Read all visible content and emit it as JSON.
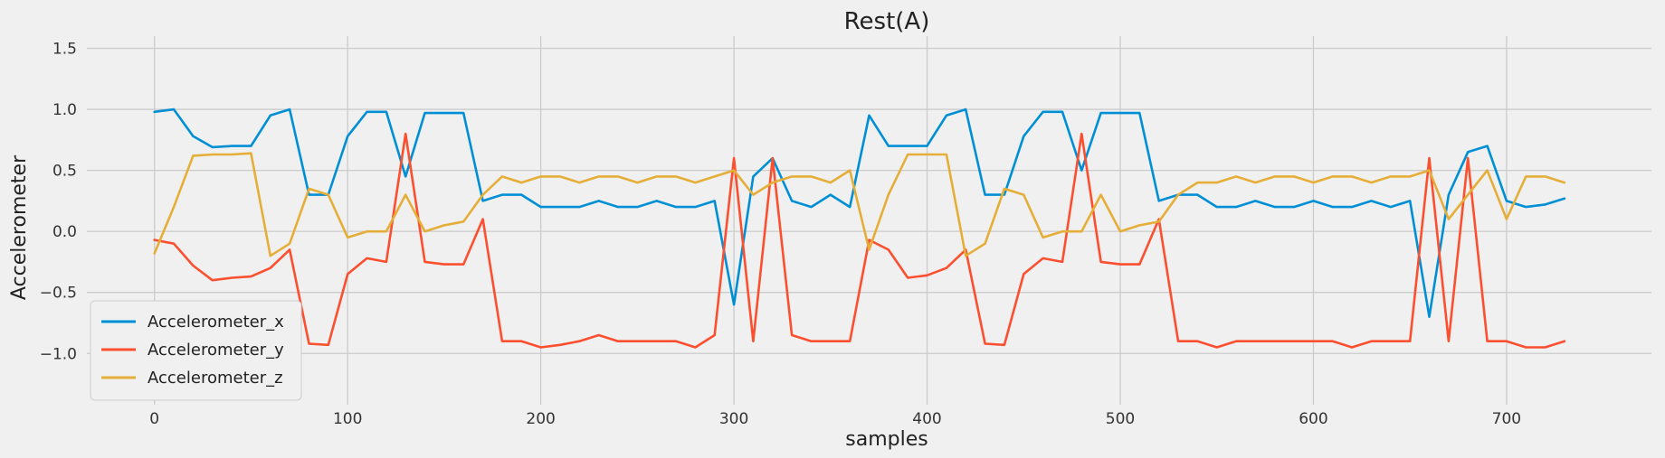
{
  "chart_data": {
    "type": "line",
    "title": "Rest(A)",
    "xlabel": "samples",
    "ylabel": "Accelerometer",
    "xlim": [
      -35,
      775
    ],
    "ylim": [
      -1.42,
      1.6
    ],
    "x_ticks": [
      0,
      100,
      200,
      300,
      400,
      500,
      600,
      700
    ],
    "y_ticks": [
      -1.0,
      -0.5,
      0.0,
      0.5,
      1.0,
      1.5
    ],
    "x_tick_labels": [
      "0",
      "100",
      "200",
      "300",
      "400",
      "500",
      "600",
      "700"
    ],
    "y_tick_labels": [
      "−1.0",
      "−0.5",
      "0.0",
      "0.5",
      "1.0",
      "1.5"
    ],
    "grid": true,
    "legend_position": "lower-left",
    "x_step": 10,
    "series": [
      {
        "name": "Accelerometer_x",
        "color": "#008fd5",
        "values": [
          0.98,
          1.0,
          0.78,
          0.69,
          0.7,
          0.7,
          0.95,
          1.0,
          0.3,
          0.3,
          0.78,
          0.98,
          0.98,
          0.45,
          0.97,
          0.97,
          0.97,
          0.25,
          0.3,
          0.3,
          0.2,
          0.2,
          0.2,
          0.25,
          0.2,
          0.2,
          0.25,
          0.2,
          0.2,
          0.25,
          -0.6,
          0.45,
          0.6,
          0.25,
          0.2,
          0.3,
          0.2,
          0.95,
          0.7,
          0.7,
          0.7,
          0.95,
          1.0,
          0.3,
          0.3,
          0.78,
          0.98,
          0.98,
          0.5,
          0.97,
          0.97,
          0.97,
          0.25,
          0.3,
          0.3,
          0.2,
          0.2,
          0.25,
          0.2,
          0.2,
          0.25,
          0.2,
          0.2,
          0.25,
          0.2,
          0.25,
          -0.7,
          0.3,
          0.65,
          0.7,
          0.25,
          0.2,
          0.22,
          0.27
        ]
      },
      {
        "name": "Accelerometer_y",
        "color": "#fc4f30",
        "values": [
          -0.07,
          -0.1,
          -0.28,
          -0.4,
          -0.38,
          -0.37,
          -0.3,
          -0.15,
          -0.92,
          -0.93,
          -0.35,
          -0.22,
          -0.25,
          0.8,
          -0.25,
          -0.27,
          -0.27,
          0.1,
          -0.9,
          -0.9,
          -0.95,
          -0.93,
          -0.9,
          -0.85,
          -0.9,
          -0.9,
          -0.9,
          -0.9,
          -0.95,
          -0.85,
          0.6,
          -0.9,
          0.6,
          -0.85,
          -0.9,
          -0.9,
          -0.9,
          -0.07,
          -0.15,
          -0.38,
          -0.36,
          -0.3,
          -0.15,
          -0.92,
          -0.93,
          -0.35,
          -0.22,
          -0.25,
          0.8,
          -0.25,
          -0.27,
          -0.27,
          0.1,
          -0.9,
          -0.9,
          -0.95,
          -0.9,
          -0.9,
          -0.9,
          -0.9,
          -0.9,
          -0.9,
          -0.95,
          -0.9,
          -0.9,
          -0.9,
          0.6,
          -0.9,
          0.6,
          -0.9,
          -0.9,
          -0.95,
          -0.95,
          -0.9
        ]
      },
      {
        "name": "Accelerometer_z",
        "color": "#e5ae38",
        "values": [
          -0.18,
          0.2,
          0.62,
          0.63,
          0.63,
          0.64,
          -0.2,
          -0.1,
          0.35,
          0.3,
          -0.05,
          0.0,
          0.0,
          0.3,
          0.0,
          0.05,
          0.08,
          0.3,
          0.45,
          0.4,
          0.45,
          0.45,
          0.4,
          0.45,
          0.45,
          0.4,
          0.45,
          0.45,
          0.4,
          0.45,
          0.5,
          0.3,
          0.4,
          0.45,
          0.45,
          0.4,
          0.5,
          -0.15,
          0.3,
          0.63,
          0.63,
          0.63,
          -0.2,
          -0.1,
          0.35,
          0.3,
          -0.05,
          0.0,
          0.0,
          0.3,
          0.0,
          0.05,
          0.08,
          0.3,
          0.4,
          0.4,
          0.45,
          0.4,
          0.45,
          0.45,
          0.4,
          0.45,
          0.45,
          0.4,
          0.45,
          0.45,
          0.5,
          0.1,
          0.3,
          0.5,
          0.1,
          0.45,
          0.45,
          0.4
        ]
      }
    ]
  }
}
